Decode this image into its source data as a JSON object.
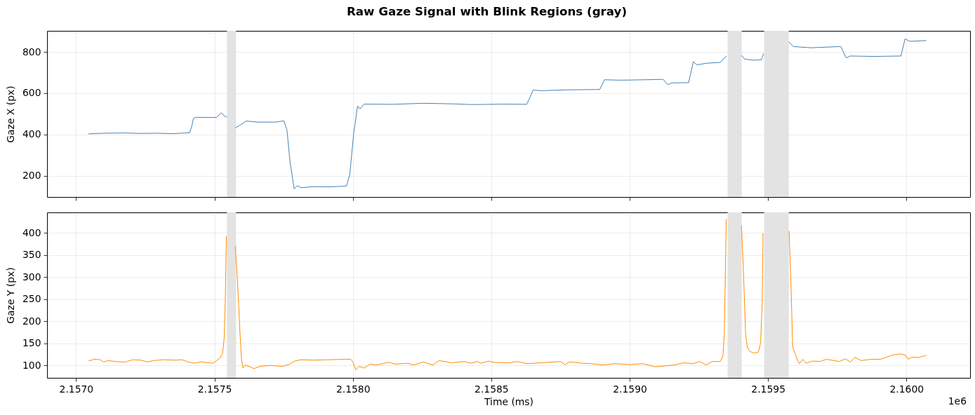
{
  "chart_data": [
    {
      "type": "line",
      "title": "Raw Gaze Signal with Blink Regions (gray)",
      "ylabel": "Gaze X (px)",
      "tick_labels": "y",
      "grid": true,
      "xlim": [
        2.156895,
        2.16023
      ],
      "ylim": [
        97,
        902
      ],
      "xticks": [
        2.157,
        2.1575,
        2.158,
        2.1585,
        2.159,
        2.1595,
        2.16
      ],
      "yticks": [
        200,
        400,
        600,
        800
      ],
      "bands": [
        {
          "axis": "x",
          "from": 2.157545,
          "to": 2.157578,
          "color": "#e3e3e3"
        },
        {
          "axis": "x",
          "from": 2.159354,
          "to": 2.159405,
          "color": "#e3e3e3"
        },
        {
          "axis": "x",
          "from": 2.159486,
          "to": 2.159575,
          "color": "#e3e3e3"
        }
      ],
      "x": [
        2.157045,
        2.157099,
        2.157178,
        2.157235,
        2.157291,
        2.157348,
        2.15741,
        2.157418,
        2.157424,
        2.157433,
        2.157507,
        2.157525,
        2.157535,
        2.157545,
        2.15756,
        2.157575,
        2.157592,
        2.157615,
        2.157654,
        2.157722,
        2.157751,
        2.157762,
        2.157773,
        2.157788,
        2.157799,
        2.157813,
        2.157858,
        2.157915,
        2.157977,
        2.157989,
        2.158003,
        2.158017,
        2.158026,
        2.15804,
        2.158142,
        2.158255,
        2.158369,
        2.158425,
        2.158451,
        2.158542,
        2.158628,
        2.15864,
        2.158651,
        2.15868,
        2.158772,
        2.158892,
        2.158909,
        2.158966,
        2.159058,
        2.159121,
        2.159138,
        2.159152,
        2.159213,
        2.15923,
        2.159244,
        2.159276,
        2.159327,
        2.15935,
        2.15938,
        2.159404,
        2.159416,
        2.159448,
        2.159476,
        2.159484,
        2.15953,
        2.159575,
        2.159591,
        2.159654,
        2.159763,
        2.159782,
        2.159797,
        2.159883,
        2.15998,
        2.159995,
        2.160012,
        2.160072
      ],
      "series": [
        {
          "color": "#4682b4",
          "values": [
            403,
            406,
            407,
            405,
            406,
            404,
            408,
            440,
            478,
            483,
            482,
            505,
            490,
            485,
            null,
            432,
            445,
            465,
            460,
            460,
            466,
            420,
            268,
            136,
            152,
            142,
            147,
            146,
            150,
            208,
            405,
            538,
            523,
            547,
            546,
            551,
            548,
            545,
            545,
            547,
            546,
            580,
            615,
            612,
            616,
            618,
            665,
            663,
            665,
            667,
            641,
            650,
            651,
            752,
            737,
            745,
            749,
            780,
            null,
            783,
            765,
            760,
            762,
            792,
            null,
            849,
            826,
            820,
            826,
            771,
            780,
            778,
            780,
            863,
            851,
            855
          ]
        }
      ]
    },
    {
      "type": "line",
      "xlabel": "Time (ms)",
      "ylabel": "Gaze Y (px)",
      "grid": true,
      "annotations": [
        "1e6"
      ],
      "xlim": [
        2.156895,
        2.16023
      ],
      "ylim": [
        72,
        446
      ],
      "xticks": [
        {
          "value": 2.157,
          "label": "2.1570"
        },
        {
          "value": 2.1575,
          "label": "2.1575"
        },
        {
          "value": 2.158,
          "label": "2.1580"
        },
        {
          "value": 2.1585,
          "label": "2.1585"
        },
        {
          "value": 2.159,
          "label": "2.1590"
        },
        {
          "value": 2.1595,
          "label": "2.1595"
        },
        {
          "value": 2.16,
          "label": "2.1600"
        }
      ],
      "yticks": [
        100,
        150,
        200,
        250,
        300,
        350,
        400
      ],
      "bands": [
        {
          "axis": "x",
          "from": 2.157545,
          "to": 2.157578,
          "color": "#e3e3e3"
        },
        {
          "axis": "x",
          "from": 2.159354,
          "to": 2.159405,
          "color": "#e3e3e3"
        },
        {
          "axis": "x",
          "from": 2.159486,
          "to": 2.159575,
          "color": "#e3e3e3"
        }
      ],
      "x": [
        2.157045,
        2.157065,
        2.157087,
        2.157099,
        2.157116,
        2.157155,
        2.157178,
        2.157206,
        2.157235,
        2.157257,
        2.15728,
        2.157314,
        2.157359,
        2.157382,
        2.157405,
        2.157427,
        2.15745,
        2.157495,
        2.157518,
        2.157529,
        2.157535,
        2.157539,
        2.157543,
        2.15756,
        2.157575,
        2.157584,
        2.157592,
        2.157598,
        2.157603,
        2.157611,
        2.157632,
        2.157643,
        2.157666,
        2.1577,
        2.157745,
        2.157768,
        2.15779,
        2.157813,
        2.157858,
        2.157915,
        2.157972,
        2.157992,
        2.158,
        2.158011,
        2.158023,
        2.15804,
        2.158062,
        2.158085,
        2.15813,
        2.158153,
        2.158198,
        2.158221,
        2.158255,
        2.158289,
        2.158312,
        2.158357,
        2.158403,
        2.158425,
        2.158451,
        2.158462,
        2.158491,
        2.158508,
        2.158565,
        2.158594,
        2.158628,
        2.15868,
        2.158749,
        2.158766,
        2.158783,
        2.158829,
        2.158863,
        2.158903,
        2.158944,
        2.159001,
        2.159047,
        2.159092,
        2.159127,
        2.159161,
        2.159196,
        2.15923,
        2.159253,
        2.159276,
        2.159299,
        2.159327,
        2.159337,
        2.159342,
        2.159346,
        2.159349,
        2.15938,
        2.159404,
        2.159411,
        2.159419,
        2.159425,
        2.159434,
        2.159448,
        2.159465,
        2.159473,
        2.159479,
        2.159482,
        2.15953,
        2.159576,
        2.159583,
        2.159589,
        2.159597,
        2.159606,
        2.159614,
        2.159625,
        2.159637,
        2.15966,
        2.159688,
        2.159711,
        2.159757,
        2.15978,
        2.159797,
        2.159814,
        2.159837,
        2.159871,
        2.159906,
        2.159929,
        2.159952,
        2.15998,
        2.159997,
        2.160006,
        2.16002,
        2.160043,
        2.160072
      ],
      "series": [
        {
          "color": "#ff8c00",
          "values": [
            110,
            114,
            113,
            108,
            111,
            108,
            108,
            113,
            112,
            108,
            111,
            113,
            112,
            113,
            108,
            105,
            108,
            105,
            116,
            126,
            161,
            246,
            392,
            null,
            370,
            281,
            175,
            112,
            94,
            101,
            96,
            93,
            98,
            100,
            98,
            102,
            110,
            113,
            112,
            113,
            114,
            114,
            108,
            90,
            98,
            94,
            103,
            101,
            107,
            103,
            105,
            101,
            108,
            101,
            111,
            106,
            109,
            105,
            109,
            105,
            110,
            107,
            106,
            109,
            104,
            106,
            109,
            102,
            108,
            105,
            104,
            101,
            104,
            102,
            104,
            97,
            99,
            101,
            106,
            104,
            109,
            101,
            109,
            109,
            121,
            171,
            315,
            431,
            null,
            416,
            315,
            171,
            142,
            132,
            128,
            130,
            150,
            243,
            399,
            null,
            404,
            279,
            142,
            128,
            112,
            104,
            114,
            105,
            110,
            109,
            114,
            109,
            115,
            108,
            118,
            111,
            114,
            114,
            119,
            124,
            126,
            123,
            114,
            119,
            118,
            123
          ]
        }
      ]
    }
  ]
}
